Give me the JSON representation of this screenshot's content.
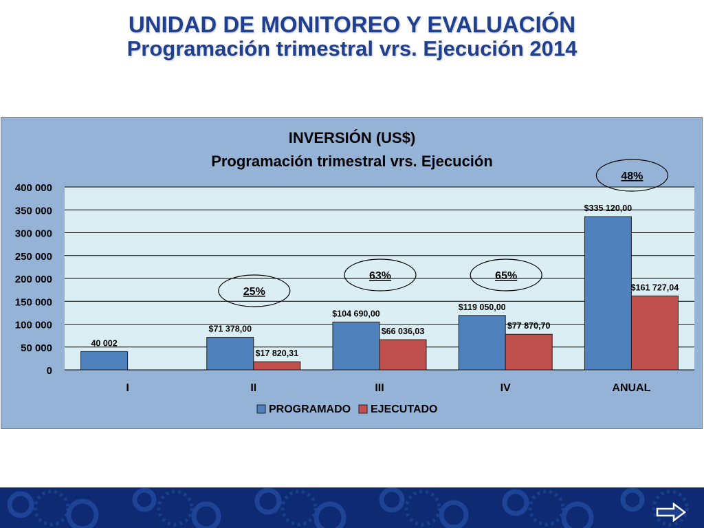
{
  "header": {
    "title_line1": "UNIDAD DE MONITOREO Y EVALUACIÓN",
    "title_line2": "Programación trimestral vrs. Ejecución 2014"
  },
  "chart_data": {
    "type": "bar",
    "title": "INVERSIÓN (US$)",
    "subtitle": "Programación trimestral vrs. Ejecución",
    "categories": [
      "I",
      "II",
      "III",
      "IV",
      "ANUAL"
    ],
    "series": [
      {
        "name": "PROGRAMADO",
        "color": "#4f81bd",
        "values": [
          40002,
          71378,
          104690,
          119050,
          335120
        ],
        "labels": [
          "40 002",
          "$71 378,00",
          "$104 690,00",
          "$119 050,00",
          "$335 120,00"
        ]
      },
      {
        "name": "EJECUTADO",
        "color": "#c0504d",
        "values": [
          null,
          17820.31,
          66036.03,
          77870.7,
          161727.04
        ],
        "labels": [
          "",
          "$17 820,31",
          "$66 036,03",
          "$77 870,70",
          "$161 727,04"
        ]
      }
    ],
    "percentages": [
      "",
      "25%",
      "63%",
      "65%",
      "48%"
    ],
    "ylim": [
      0,
      400000
    ],
    "yticks": [
      0,
      50000,
      100000,
      150000,
      200000,
      250000,
      300000,
      350000,
      400000
    ],
    "ytick_labels": [
      "0",
      "50 000",
      "100 000",
      "150 000",
      "200 000",
      "250 000",
      "300 000",
      "350 000",
      "400 000"
    ],
    "grid": true,
    "legend_position": "bottom"
  }
}
